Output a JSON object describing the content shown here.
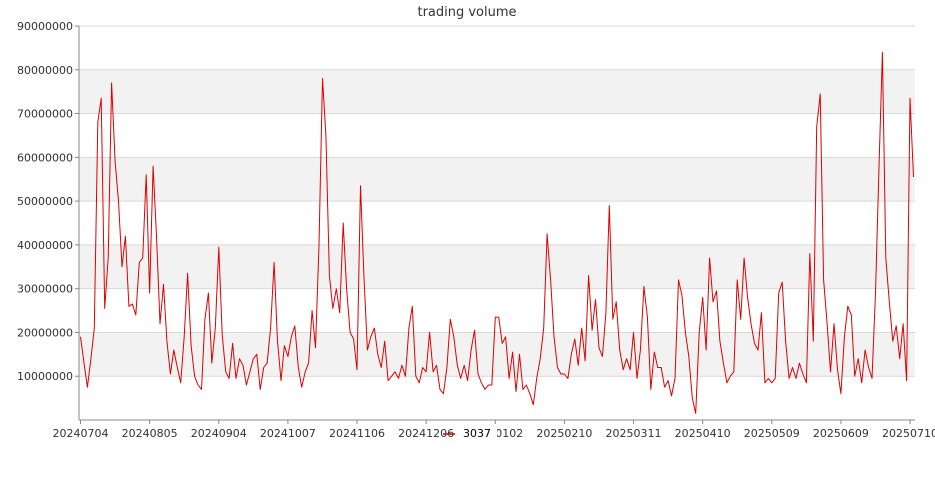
{
  "chart_data": {
    "type": "line",
    "title": "trading volume",
    "ylim": [
      0,
      90000000
    ],
    "y_ticks": [
      10000000,
      20000000,
      30000000,
      40000000,
      50000000,
      60000000,
      70000000,
      80000000,
      90000000
    ],
    "y_tick_labels": [
      "10000000",
      "20000000",
      "30000000",
      "40000000",
      "50000000",
      "60000000",
      "70000000",
      "80000000",
      "90000000"
    ],
    "x_tick_labels": [
      "20240704",
      "20240805",
      "20240904",
      "20241007",
      "20241106",
      "20241206",
      "20250102",
      "20250210",
      "20250311",
      "20250410",
      "20250509",
      "20250609",
      "20250710"
    ],
    "x_tick_positions": [
      0,
      20,
      40,
      60,
      80,
      100,
      120,
      140,
      160,
      180,
      200,
      220,
      240
    ],
    "grid": true,
    "legend_position": "bottom-center",
    "series": [
      {
        "name": "3037",
        "color": "#e00000",
        "values": [
          19000000,
          13000000,
          7500000,
          14000000,
          21000000,
          68000000,
          73500000,
          25500000,
          37000000,
          77000000,
          59000000,
          50000000,
          35000000,
          42000000,
          26000000,
          26500000,
          24000000,
          36000000,
          37000000,
          56000000,
          29000000,
          58000000,
          42000000,
          22000000,
          31000000,
          18000000,
          10500000,
          16000000,
          12000000,
          8500000,
          19000000,
          33500000,
          17000000,
          10000000,
          8000000,
          7000000,
          23000000,
          29000000,
          13000000,
          21000000,
          39500000,
          19500000,
          11000000,
          9500000,
          17500000,
          9500000,
          14000000,
          12500000,
          8000000,
          11000000,
          14000000,
          15000000,
          7000000,
          12000000,
          13000000,
          21000000,
          36000000,
          18000000,
          9000000,
          17000000,
          14500000,
          19000000,
          21500000,
          12000000,
          7500000,
          11000000,
          13000000,
          25000000,
          16500000,
          40000000,
          78000000,
          65000000,
          33000000,
          25500000,
          30000000,
          24500000,
          45000000,
          30000000,
          20000000,
          18500000,
          11500000,
          53500000,
          33000000,
          16000000,
          19000000,
          21000000,
          15000000,
          12000000,
          18000000,
          9000000,
          10000000,
          11000000,
          9500000,
          12500000,
          10000000,
          21000000,
          26000000,
          10000000,
          8500000,
          12000000,
          11000000,
          20000000,
          11000000,
          12500000,
          7000000,
          6000000,
          12000000,
          23000000,
          19000000,
          12500000,
          9500000,
          12500000,
          9000000,
          16000000,
          20500000,
          10500000,
          8500000,
          7000000,
          8000000,
          8000000,
          23500000,
          23500000,
          17500000,
          19000000,
          9500000,
          15500000,
          6500000,
          15000000,
          7000000,
          8000000,
          6000000,
          3500000,
          9500000,
          14000000,
          21000000,
          42500000,
          32000000,
          19000000,
          12000000,
          10500000,
          10500000,
          9500000,
          15000000,
          18500000,
          12500000,
          21000000,
          13500000,
          33000000,
          20500000,
          27500000,
          16500000,
          14500000,
          24500000,
          49000000,
          23000000,
          27000000,
          16000000,
          11500000,
          14000000,
          11500000,
          20000000,
          9500000,
          16000000,
          30500000,
          23500000,
          7000000,
          15500000,
          12000000,
          12000000,
          7500000,
          9000000,
          5500000,
          9500000,
          32000000,
          28500000,
          20000000,
          14500000,
          5000000,
          1500000,
          20000000,
          28000000,
          16000000,
          37000000,
          27000000,
          29500000,
          18000000,
          13000000,
          8500000,
          10000000,
          11000000,
          32000000,
          23000000,
          37000000,
          28000000,
          22000000,
          17500000,
          16000000,
          24500000,
          8500000,
          9500000,
          8500000,
          9500000,
          29000000,
          31500000,
          18000000,
          9500000,
          12000000,
          9500000,
          13000000,
          10500000,
          8500000,
          38000000,
          18000000,
          67000000,
          74500000,
          32000000,
          22000000,
          11000000,
          22000000,
          11500000,
          6000000,
          19000000,
          26000000,
          24000000,
          10000000,
          14000000,
          8500000,
          16000000,
          12000000,
          9500000,
          29000000,
          57000000,
          84000000,
          37000000,
          27000000,
          18000000,
          21500000,
          14000000,
          22000000,
          9000000,
          73500000,
          55500000
        ]
      }
    ]
  }
}
